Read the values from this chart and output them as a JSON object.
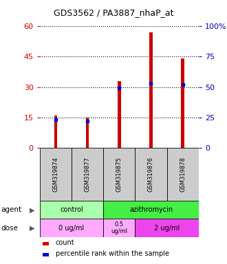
{
  "title": "GDS3562 / PA3887_nhaP_at",
  "samples": [
    "GSM319874",
    "GSM319877",
    "GSM319875",
    "GSM319876",
    "GSM319878"
  ],
  "counts": [
    16,
    15,
    33,
    57,
    44
  ],
  "percentiles": [
    23,
    22,
    49,
    53,
    52
  ],
  "ylim_left": [
    0,
    60
  ],
  "ylim_right": [
    0,
    100
  ],
  "yticks_left": [
    0,
    15,
    30,
    45,
    60
  ],
  "yticks_right": [
    0,
    25,
    50,
    75,
    100
  ],
  "ytick_labels_right": [
    "0",
    "25",
    "50",
    "75",
    "100%"
  ],
  "bar_color": "#cc0000",
  "marker_color": "#0000cc",
  "agent_labels": [
    "control",
    "azithromycin"
  ],
  "agent_color_light": "#aaffaa",
  "agent_color_bright": "#44ee44",
  "dose_labels": [
    "0 ug/ml",
    "0.5\nug/ml",
    "2 ug/ml"
  ],
  "dose_color_light": "#ffaaff",
  "dose_color_bright": "#ee44ee",
  "legend_count_color": "#cc0000",
  "legend_pct_color": "#0000cc",
  "bg_color": "#ffffff",
  "plot_bg": "#ffffff",
  "grid_color": "#000000",
  "tick_color_left": "#cc0000",
  "tick_color_right": "#0000bb",
  "sample_box_color": "#cccccc"
}
